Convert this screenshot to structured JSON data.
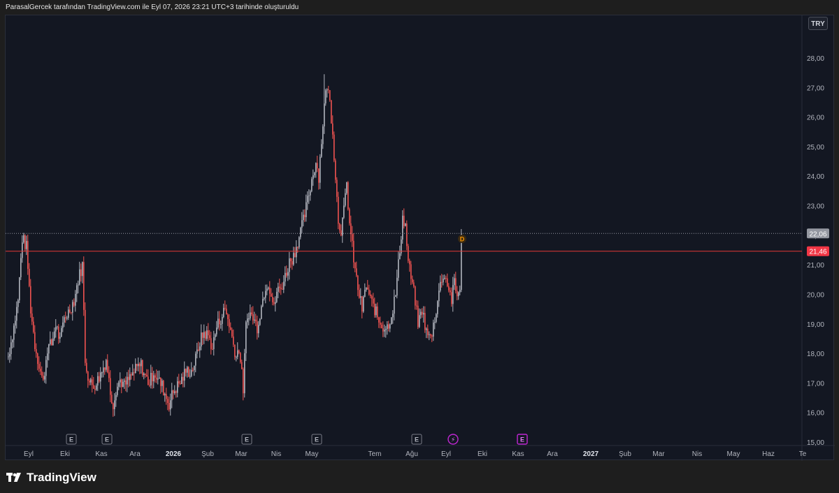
{
  "header": {
    "caption": "ParasalGercek tarafından TradingView.com ile Eyl 07, 2026 23:21 UTC+3 tarihinde oluşturuldu"
  },
  "currency_button": "TRY",
  "footer": {
    "logo_text": "TradingView"
  },
  "colors": {
    "background": "#131722",
    "up": "#b2b5be",
    "down": "#f05350",
    "price_line": "#e53935",
    "last_price_badge": "#f23645",
    "text": "#b2b5be"
  },
  "chart_data": {
    "type": "candlestick",
    "y_axis": {
      "side": "right",
      "range": [
        14.8,
        28.5
      ],
      "ticks": [
        "15,00",
        "16,00",
        "17,00",
        "18,00",
        "19,00",
        "20,00",
        "21,00",
        "22,00",
        "23,00",
        "24,00",
        "25,00",
        "26,00",
        "27,00",
        "28,00"
      ]
    },
    "x_axis": {
      "labels": [
        "Eyl",
        "Eki",
        "Kas",
        "Ara",
        "2026",
        "Şub",
        "Mar",
        "Nis",
        "May",
        "Tem",
        "Ağu",
        "Eyl",
        "Eki",
        "Kas",
        "Ara",
        "2027",
        "Şub",
        "Mar",
        "Nis",
        "May",
        "Haz",
        "Te"
      ]
    },
    "price_lines": [
      {
        "label": "22,06",
        "value": 22.06,
        "style": "dotted",
        "kind": "last_close"
      },
      {
        "label": "21,46",
        "value": 21.46,
        "style": "solid",
        "kind": "horizontal_level"
      }
    ],
    "markers": [
      {
        "text": "E",
        "kind": "earnings",
        "near": "Eki"
      },
      {
        "text": "E",
        "kind": "earnings",
        "near": "Kas"
      },
      {
        "text": "E",
        "kind": "earnings",
        "near": "Mar"
      },
      {
        "text": "E",
        "kind": "earnings",
        "near": "May"
      },
      {
        "text": "E",
        "kind": "earnings",
        "near": "Ağu"
      },
      {
        "text": "⚡",
        "kind": "split",
        "near": "Eyl"
      },
      {
        "text": "E",
        "kind": "upcoming_earnings",
        "near": "Kas"
      }
    ],
    "dividend_flag": "D",
    "path_anchors": [
      [
        0,
        17.9
      ],
      [
        8,
        18.9
      ],
      [
        14,
        19.8
      ],
      [
        20,
        21.9
      ],
      [
        26,
        21.6
      ],
      [
        32,
        19.5
      ],
      [
        38,
        18.3
      ],
      [
        44,
        17.6
      ],
      [
        50,
        17.0
      ],
      [
        56,
        18.2
      ],
      [
        62,
        18.3
      ],
      [
        68,
        19.0
      ],
      [
        74,
        18.4
      ],
      [
        80,
        19.2
      ],
      [
        86,
        19.4
      ],
      [
        94,
        19.8
      ],
      [
        100,
        20.5
      ],
      [
        106,
        21.0
      ],
      [
        110,
        17.8
      ],
      [
        116,
        17.0
      ],
      [
        122,
        16.9
      ],
      [
        128,
        17.1
      ],
      [
        134,
        17.4
      ],
      [
        140,
        17.8
      ],
      [
        146,
        16.7
      ],
      [
        150,
        16.3
      ],
      [
        154,
        16.8
      ],
      [
        160,
        17.1
      ],
      [
        166,
        16.9
      ],
      [
        172,
        17.1
      ],
      [
        178,
        17.3
      ],
      [
        184,
        17.5
      ],
      [
        190,
        17.6
      ],
      [
        196,
        17.2
      ],
      [
        202,
        17.0
      ],
      [
        208,
        17.4
      ],
      [
        214,
        17.1
      ],
      [
        220,
        16.9
      ],
      [
        226,
        16.5
      ],
      [
        230,
        16.3
      ],
      [
        236,
        16.7
      ],
      [
        242,
        16.9
      ],
      [
        248,
        17.1
      ],
      [
        254,
        17.4
      ],
      [
        262,
        17.4
      ],
      [
        268,
        17.8
      ],
      [
        274,
        18.4
      ],
      [
        280,
        18.7
      ],
      [
        286,
        18.6
      ],
      [
        292,
        18.2
      ],
      [
        298,
        18.9
      ],
      [
        304,
        19.2
      ],
      [
        310,
        19.5
      ],
      [
        316,
        19.0
      ],
      [
        322,
        18.3
      ],
      [
        326,
        17.9
      ],
      [
        330,
        18.2
      ],
      [
        336,
        16.8
      ],
      [
        340,
        18.9
      ],
      [
        344,
        19.4
      ],
      [
        350,
        19.2
      ],
      [
        356,
        18.9
      ],
      [
        362,
        19.6
      ],
      [
        368,
        20.3
      ],
      [
        372,
        20.4
      ],
      [
        376,
        20.0
      ],
      [
        380,
        19.5
      ],
      [
        384,
        20.1
      ],
      [
        390,
        20.2
      ],
      [
        396,
        20.6
      ],
      [
        402,
        21.1
      ],
      [
        408,
        21.3
      ],
      [
        414,
        21.8
      ],
      [
        420,
        22.3
      ],
      [
        424,
        22.7
      ],
      [
        430,
        23.4
      ],
      [
        436,
        24.1
      ],
      [
        440,
        24.5
      ],
      [
        444,
        24.0
      ],
      [
        448,
        25.2
      ],
      [
        452,
        26.4
      ],
      [
        456,
        27.1
      ],
      [
        460,
        26.5
      ],
      [
        464,
        25.5
      ],
      [
        468,
        24.0
      ],
      [
        472,
        22.5
      ],
      [
        476,
        22.2
      ],
      [
        480,
        22.8
      ],
      [
        484,
        23.7
      ],
      [
        488,
        22.4
      ],
      [
        492,
        21.6
      ],
      [
        496,
        20.8
      ],
      [
        500,
        20.2
      ],
      [
        506,
        19.5
      ],
      [
        512,
        20.3
      ],
      [
        518,
        19.8
      ],
      [
        524,
        19.5
      ],
      [
        530,
        19.1
      ],
      [
        536,
        18.9
      ],
      [
        542,
        18.9
      ],
      [
        548,
        19.3
      ],
      [
        554,
        20.0
      ],
      [
        560,
        21.5
      ],
      [
        564,
        22.6
      ],
      [
        568,
        22.3
      ],
      [
        572,
        21.1
      ],
      [
        578,
        20.3
      ],
      [
        582,
        19.8
      ],
      [
        586,
        19.0
      ],
      [
        592,
        19.5
      ],
      [
        598,
        18.7
      ],
      [
        604,
        18.5
      ],
      [
        610,
        19.2
      ],
      [
        616,
        20.1
      ],
      [
        622,
        20.7
      ],
      [
        628,
        20.4
      ],
      [
        634,
        19.8
      ],
      [
        638,
        20.4
      ],
      [
        642,
        19.9
      ],
      [
        646,
        20.3
      ],
      [
        648,
        22.06
      ]
    ]
  }
}
